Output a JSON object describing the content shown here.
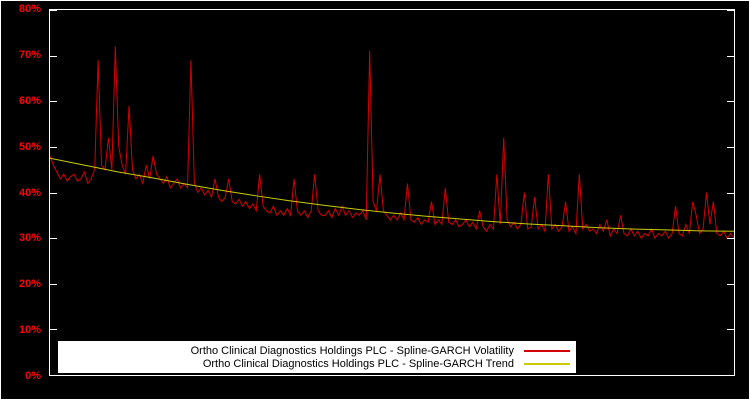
{
  "chart_data": {
    "type": "line",
    "title": "",
    "background": "#000000",
    "plot_border_color": "#ffffff",
    "tick_label_color": "#ff0000",
    "grid": false,
    "legend_position": "bottom-center",
    "legend_background": "#ffffff",
    "legend_text_color": "#000000",
    "xlabel": "",
    "ylabel": "",
    "ylim": [
      0,
      80
    ],
    "ytick_values": [
      0,
      10,
      20,
      30,
      40,
      50,
      60,
      70,
      80
    ],
    "yticks": [
      "0%",
      "10%",
      "20%",
      "30%",
      "40%",
      "50%",
      "60%",
      "70%",
      "80%"
    ],
    "xticks": [],
    "series": [
      {
        "name": "Ortho Clinical Diagnostics Holdings PLC - Spline-GARCH Volatility",
        "color": "#d40000",
        "values": [
          48,
          46,
          44.5,
          43,
          44,
          42.5,
          43.5,
          44,
          42.5,
          43,
          44.5,
          42,
          43,
          45,
          69,
          46,
          45,
          52,
          45,
          72,
          50,
          46,
          44,
          59,
          45,
          43,
          44,
          42,
          46,
          43,
          48,
          44,
          43,
          42,
          43.5,
          41,
          42,
          43,
          41,
          42,
          41,
          69,
          42,
          40,
          41,
          39.5,
          40.5,
          39,
          43,
          39,
          38,
          39,
          43,
          38,
          37.5,
          38.5,
          37,
          38,
          36.5,
          37.5,
          36,
          44,
          37,
          36,
          35.5,
          37,
          35,
          36,
          35,
          36.5,
          35,
          43,
          36,
          35,
          36,
          34.5,
          36,
          44,
          36,
          35,
          35,
          36,
          34.5,
          36.5,
          35,
          37,
          35,
          36,
          34.5,
          35.5,
          35,
          36,
          34,
          71,
          38,
          36,
          44,
          36,
          35,
          34,
          35,
          34,
          35.5,
          34,
          42,
          34,
          33.5,
          34.5,
          33,
          34,
          33.5,
          38,
          33,
          34,
          33,
          41,
          33.5,
          33,
          34,
          32.5,
          33,
          34,
          32.5,
          33.5,
          32,
          36,
          32.5,
          31.5,
          33,
          32,
          44,
          33,
          52,
          34,
          32.5,
          33.5,
          32,
          33,
          40,
          32,
          32.5,
          39,
          32,
          33,
          31.5,
          44,
          32,
          33,
          31.5,
          32.5,
          38,
          31.5,
          32.5,
          31,
          44,
          32,
          33,
          31.5,
          32,
          31,
          33,
          31.5,
          34,
          30.5,
          32,
          31,
          35,
          31,
          30.5,
          32,
          30.5,
          31.5,
          30,
          31,
          30.5,
          32,
          30,
          31,
          30.5,
          31.5,
          30,
          31,
          37,
          31,
          30.5,
          33,
          31,
          38,
          35,
          31,
          32,
          40,
          33,
          38,
          31,
          30.5,
          31.5,
          30,
          31,
          30
        ]
      },
      {
        "name": "Ortho Clinical Diagnostics Holdings PLC - Spline-GARCH Trend",
        "color": "#cccc00",
        "x_frac": [
          0,
          0.05,
          0.1,
          0.15,
          0.2,
          0.25,
          0.3,
          0.35,
          0.4,
          0.45,
          0.5,
          0.55,
          0.6,
          0.65,
          0.7,
          0.75,
          0.8,
          0.85,
          0.9,
          0.95,
          1
        ],
        "values": [
          47.5,
          46,
          44.5,
          43.2,
          41.8,
          40.5,
          39.3,
          38.2,
          37.2,
          36.3,
          35.5,
          34.8,
          34.2,
          33.6,
          33.1,
          32.7,
          32.3,
          32,
          31.8,
          31.6,
          31.5
        ]
      }
    ]
  }
}
